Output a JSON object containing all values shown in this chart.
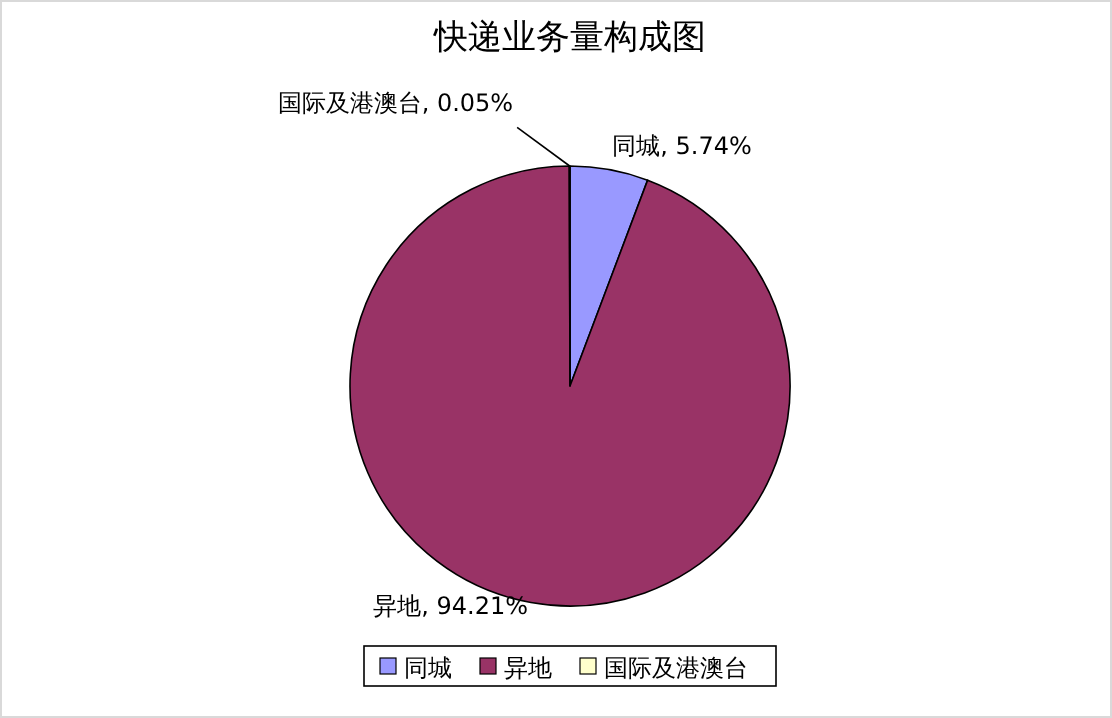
{
  "chart_data": {
    "type": "pie",
    "title": "快递业务量构成图",
    "categories": [
      "同城",
      "异地",
      "国际及港澳台"
    ],
    "values": [
      5.74,
      94.21,
      0.05
    ],
    "colors": [
      "#9999ff",
      "#993366",
      "#ffffcc"
    ],
    "value_labels": [
      "同城, 5.74%",
      "异地, 94.21%",
      "国际及港澳台, 0.05%"
    ],
    "legend": "bottom"
  }
}
